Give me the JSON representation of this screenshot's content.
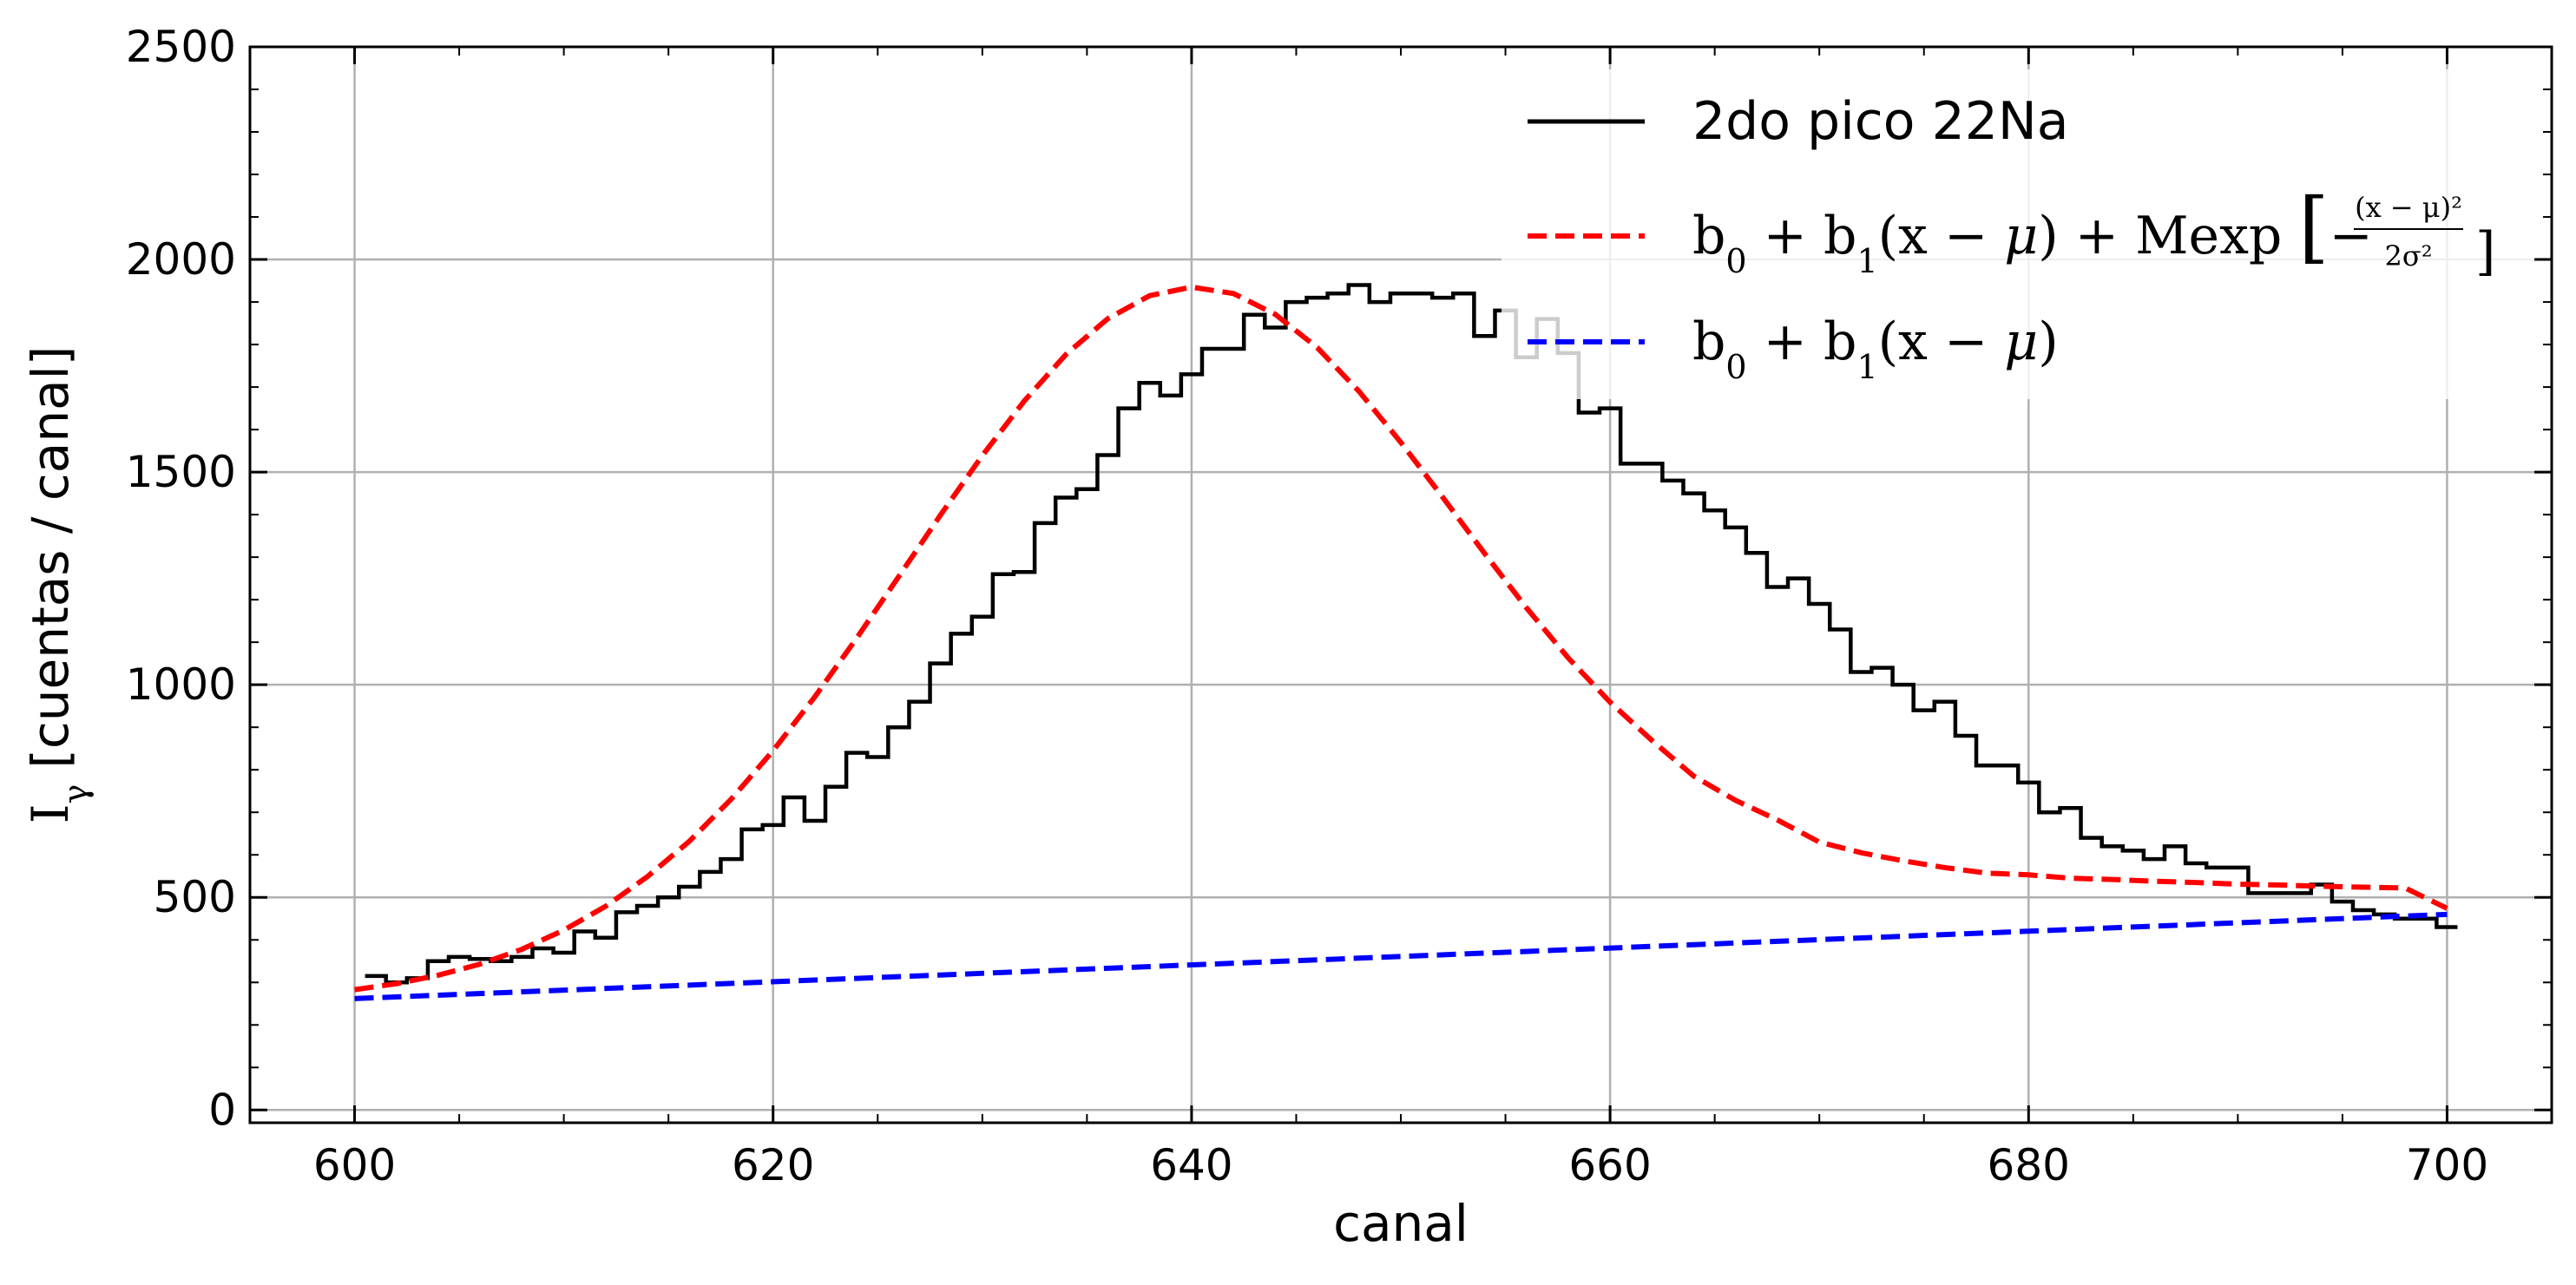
{
  "chart_data": {
    "type": "line",
    "xlabel": "canal",
    "ylabel": "I",
    "ylabel_subscript": "γ",
    "ylabel_unit": "[cuentas / canal]",
    "xlim": [
      595,
      705
    ],
    "ylim": [
      -30,
      2500
    ],
    "x_ticks": [
      600,
      620,
      640,
      660,
      680,
      700
    ],
    "x_tick_labels": [
      "600",
      "620",
      "640",
      "660",
      "680",
      "700"
    ],
    "y_ticks": [
      0,
      500,
      1000,
      1500,
      2000,
      2500
    ],
    "y_tick_labels": [
      "0",
      "500",
      "1000",
      "1500",
      "2000",
      "2500"
    ],
    "grid": true,
    "legend_position": "top-right",
    "colors": {
      "histogram": "#000000",
      "fit": "#ff0000",
      "background": "#0000ff",
      "grid": "#b0b0b0"
    },
    "series": [
      {
        "name": "2do pico 22Na",
        "style": "steps",
        "x": [
          601,
          602,
          603,
          604,
          605,
          606,
          607,
          608,
          609,
          610,
          611,
          612,
          613,
          614,
          615,
          616,
          617,
          618,
          619,
          620,
          621,
          622,
          623,
          624,
          625,
          626,
          627,
          628,
          629,
          630,
          631,
          632,
          633,
          634,
          635,
          636,
          637,
          638,
          639,
          640,
          641,
          642,
          643,
          644,
          645,
          646,
          647,
          648,
          649,
          650,
          651,
          652,
          653,
          654,
          655,
          656,
          657,
          658,
          659,
          660,
          661,
          662,
          663,
          664,
          665,
          666,
          667,
          668,
          669,
          670,
          671,
          672,
          673,
          674,
          675,
          676,
          677,
          678,
          679,
          680,
          681,
          682,
          683,
          684,
          685,
          686,
          687,
          688,
          689,
          690,
          691,
          692,
          693,
          694,
          695,
          696,
          697,
          698,
          699,
          700
        ],
        "y": [
          315,
          300,
          310,
          350,
          360,
          355,
          350,
          360,
          380,
          370,
          420,
          405,
          465,
          480,
          500,
          525,
          560,
          590,
          660,
          670,
          735,
          680,
          760,
          840,
          830,
          900,
          960,
          1050,
          1120,
          1160,
          1260,
          1265,
          1380,
          1440,
          1460,
          1540,
          1650,
          1710,
          1680,
          1730,
          1790,
          1790,
          1870,
          1840,
          1900,
          1910,
          1920,
          1940,
          1900,
          1920,
          1920,
          1910,
          1920,
          1820,
          1880,
          1770,
          1860,
          1780,
          1640,
          1650,
          1520,
          1520,
          1480,
          1450,
          1410,
          1370,
          1310,
          1230,
          1250,
          1190,
          1130,
          1030,
          1040,
          1000,
          940,
          960,
          880,
          810,
          810,
          770,
          700,
          710,
          640,
          620,
          610,
          590,
          620,
          580,
          570,
          570,
          510,
          510,
          510,
          530,
          490,
          470,
          460,
          450,
          450,
          430
        ]
      },
      {
        "name": "b_0 + b_1(x − μ) + Mexp[−(x − μ)²/2σ²]",
        "style": "dashed",
        "x": [
          600,
          602,
          604,
          606,
          608,
          610,
          612,
          614,
          616,
          618,
          620,
          622,
          624,
          626,
          628,
          630,
          632,
          634,
          636,
          638,
          640,
          642,
          644,
          646,
          648,
          650,
          652,
          654,
          656,
          658,
          660,
          662,
          664,
          666,
          668,
          670,
          672,
          674,
          676,
          678,
          680,
          682,
          684,
          686,
          688,
          690,
          692,
          694,
          696,
          698,
          700
        ],
        "y": [
          283,
          297,
          317,
          343,
          378,
          423,
          479,
          549,
          632,
          731,
          845,
          972,
          1110,
          1254,
          1399,
          1539,
          1667,
          1777,
          1861,
          1915,
          1935,
          1920,
          1871,
          1793,
          1690,
          1570,
          1441,
          1309,
          1181,
          1063,
          959,
          869,
          785,
          728,
          682,
          630,
          605,
          586,
          570,
          557,
          553,
          545,
          542,
          538,
          535,
          531,
          529,
          526,
          524,
          522,
          474
        ]
      },
      {
        "name": "b_0 + b_1(x − μ)",
        "style": "dashed",
        "x": [
          600,
          700
        ],
        "y": [
          262,
          460
        ]
      }
    ]
  }
}
